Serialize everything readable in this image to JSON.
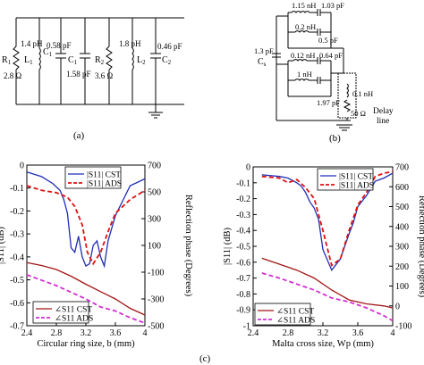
{
  "panel_labels": {
    "a": "(a)",
    "b": "(b)",
    "c": "(c)"
  },
  "circuit_a": {
    "components": [
      {
        "id": "R1",
        "label": "R",
        "sub": "1",
        "value": "2.8 Ω"
      },
      {
        "id": "L1",
        "label": "L",
        "sub": "1",
        "value": "1.4 pH"
      },
      {
        "id": "C1",
        "label": "C",
        "sub": "1",
        "value": "0.58 pF"
      },
      {
        "id": "C1b",
        "label": "C",
        "sub": "1",
        "value": "1.58 pF"
      },
      {
        "id": "R2",
        "label": "R",
        "sub": "2",
        "value": "3.6 Ω"
      },
      {
        "id": "L2",
        "label": "L",
        "sub": "2",
        "value": "1.8 pH"
      },
      {
        "id": "C2",
        "label": "C",
        "sub": "2",
        "value": "0.46 pF"
      }
    ]
  },
  "circuit_b": {
    "values": [
      "1.15 nH",
      "1.03 pF",
      "0.2 nH",
      "0.5 pF",
      "0.12 nH",
      "0.64 pF",
      "1 nH",
      "1.97 pF",
      "0.1 nH",
      "50 Ω"
    ],
    "cs_value": "1.3 pF",
    "cs_label": "C",
    "cs_sub": "s",
    "delay_line": [
      "Delay",
      "line"
    ]
  },
  "chart_data": [
    {
      "type": "line",
      "xlabel": "Circular ring size, b (mm)",
      "ylabel_left": "|S11| (dB)",
      "ylabel_right": "Reflection phase (Degrees)",
      "x_ticks": [
        "2.4",
        "2.8",
        "3.2",
        "3.6",
        "4"
      ],
      "xlim": [
        2.4,
        4.0
      ],
      "ylim_left": [
        -0.7,
        0
      ],
      "y_ticks_left": [
        "0",
        "-0.1",
        "-0.2",
        "-0.3",
        "-0.4",
        "-0.5",
        "-0.6",
        "-0.7"
      ],
      "ylim_right": [
        -500,
        700
      ],
      "y_ticks_right": [
        "700",
        "500",
        "300",
        "100",
        "-100",
        "-300",
        "-500"
      ],
      "legend_top": [
        {
          "text": "|S11| CST"
        },
        {
          "text": "|S11| ADS"
        }
      ],
      "legend_bottom": [
        {
          "text": "∠S11 CST"
        },
        {
          "text": "∠S11 ADS"
        }
      ],
      "series": [
        {
          "name": "|S11| CST",
          "axis": "left",
          "color": "#1f2fb3",
          "dash": "solid",
          "x": [
            2.4,
            2.6,
            2.75,
            2.85,
            2.9,
            2.95,
            3.0,
            3.05,
            3.1,
            3.15,
            3.2,
            3.25,
            3.3,
            3.35,
            3.4,
            3.45,
            3.5,
            3.6,
            3.8,
            4.0
          ],
          "y": [
            -0.03,
            -0.05,
            -0.08,
            -0.11,
            -0.15,
            -0.21,
            -0.36,
            -0.38,
            -0.31,
            -0.4,
            -0.44,
            -0.43,
            -0.35,
            -0.33,
            -0.4,
            -0.44,
            -0.33,
            -0.22,
            -0.09,
            -0.06
          ]
        },
        {
          "name": "|S11| ADS",
          "axis": "left",
          "color": "#e01010",
          "dash": "dashed",
          "x": [
            2.4,
            2.6,
            2.8,
            2.95,
            3.05,
            3.15,
            3.22,
            3.3,
            3.4,
            3.5,
            3.6,
            3.8,
            4.0
          ],
          "y": [
            -0.09,
            -0.11,
            -0.12,
            -0.14,
            -0.18,
            -0.26,
            -0.38,
            -0.43,
            -0.38,
            -0.29,
            -0.21,
            -0.15,
            -0.11
          ]
        },
        {
          "name": "∠S11 CST",
          "axis": "right",
          "color": "#a31515",
          "dash": "solid",
          "x": [
            2.4,
            2.6,
            2.8,
            3.0,
            3.2,
            3.4,
            3.6,
            3.8,
            4.0
          ],
          "y": [
            -28,
            -50,
            -80,
            -130,
            -190,
            -245,
            -300,
            -370,
            -420
          ]
        },
        {
          "name": "∠S11 ADS",
          "axis": "right",
          "color": "#d22fd2",
          "dash": "dashed",
          "x": [
            2.4,
            2.6,
            2.8,
            3.0,
            3.2,
            3.4,
            3.6,
            3.8,
            4.0
          ],
          "y": [
            -120,
            -160,
            -200,
            -250,
            -300,
            -360,
            -390,
            -440,
            -480
          ]
        }
      ]
    },
    {
      "type": "line",
      "xlabel": "Malta cross size, Wp (mm)",
      "ylabel_left": "|S11| (dB)",
      "ylabel_right": "Reflection phase (Degrees)",
      "x_ticks": [
        "2.4",
        "2.8",
        "3.2",
        "3.6",
        "4"
      ],
      "xlim": [
        2.4,
        4.0
      ],
      "ylim_left": [
        -1.0,
        0
      ],
      "y_ticks_left": [
        "0",
        "-0.1",
        "-0.2",
        "-0.3",
        "-0.4",
        "-0.5",
        "-0.6",
        "-0.7",
        "-0.8",
        "-0.9",
        "-1"
      ],
      "ylim_right": [
        -100,
        700
      ],
      "y_ticks_right": [
        "700",
        "600",
        "500",
        "400",
        "300",
        "200",
        "100",
        "0",
        "-100"
      ],
      "legend_top": [
        {
          "text": "|S11| CST"
        },
        {
          "text": "|S11| ADS"
        }
      ],
      "legend_bottom": [
        {
          "text": "∠S11 CST"
        },
        {
          "text": "∠S11 ADS"
        }
      ],
      "series": [
        {
          "name": "|S11| CST",
          "axis": "left",
          "color": "#1f2fb3",
          "dash": "solid",
          "x": [
            2.5,
            2.7,
            2.8,
            2.9,
            2.95,
            3.0,
            3.05,
            3.1,
            3.15,
            3.2,
            3.3,
            3.4,
            3.5,
            3.55,
            3.6,
            3.7,
            3.8,
            3.9,
            4.0
          ],
          "y": [
            -0.05,
            -0.06,
            -0.07,
            -0.1,
            -0.12,
            -0.16,
            -0.22,
            -0.26,
            -0.33,
            -0.52,
            -0.65,
            -0.58,
            -0.42,
            -0.35,
            -0.25,
            -0.18,
            -0.09,
            -0.07,
            -0.04
          ]
        },
        {
          "name": "|S11| ADS",
          "axis": "left",
          "color": "#e01010",
          "dash": "dashed",
          "x": [
            2.5,
            2.7,
            2.8,
            2.9,
            3.0,
            3.1,
            3.2,
            3.3,
            3.4,
            3.5,
            3.6,
            3.7,
            3.8,
            3.9,
            4.0
          ],
          "y": [
            -0.06,
            -0.07,
            -0.1,
            -0.08,
            -0.13,
            -0.2,
            -0.4,
            -0.62,
            -0.58,
            -0.4,
            -0.24,
            -0.16,
            -0.06,
            -0.04,
            -0.03
          ]
        },
        {
          "name": "∠S11 CST",
          "axis": "right",
          "color": "#a31515",
          "dash": "solid",
          "x": [
            2.5,
            2.7,
            2.9,
            3.1,
            3.3,
            3.5,
            3.7,
            3.9,
            4.0
          ],
          "y": [
            240,
            210,
            180,
            140,
            80,
            30,
            10,
            0,
            -10
          ]
        },
        {
          "name": "∠S11 ADS",
          "axis": "right",
          "color": "#d22fd2",
          "dash": "dashed",
          "x": [
            2.5,
            2.7,
            2.9,
            3.1,
            3.3,
            3.5,
            3.7,
            3.9,
            4.0
          ],
          "y": [
            165,
            140,
            110,
            80,
            40,
            20,
            -10,
            -50,
            -75
          ]
        }
      ]
    }
  ]
}
